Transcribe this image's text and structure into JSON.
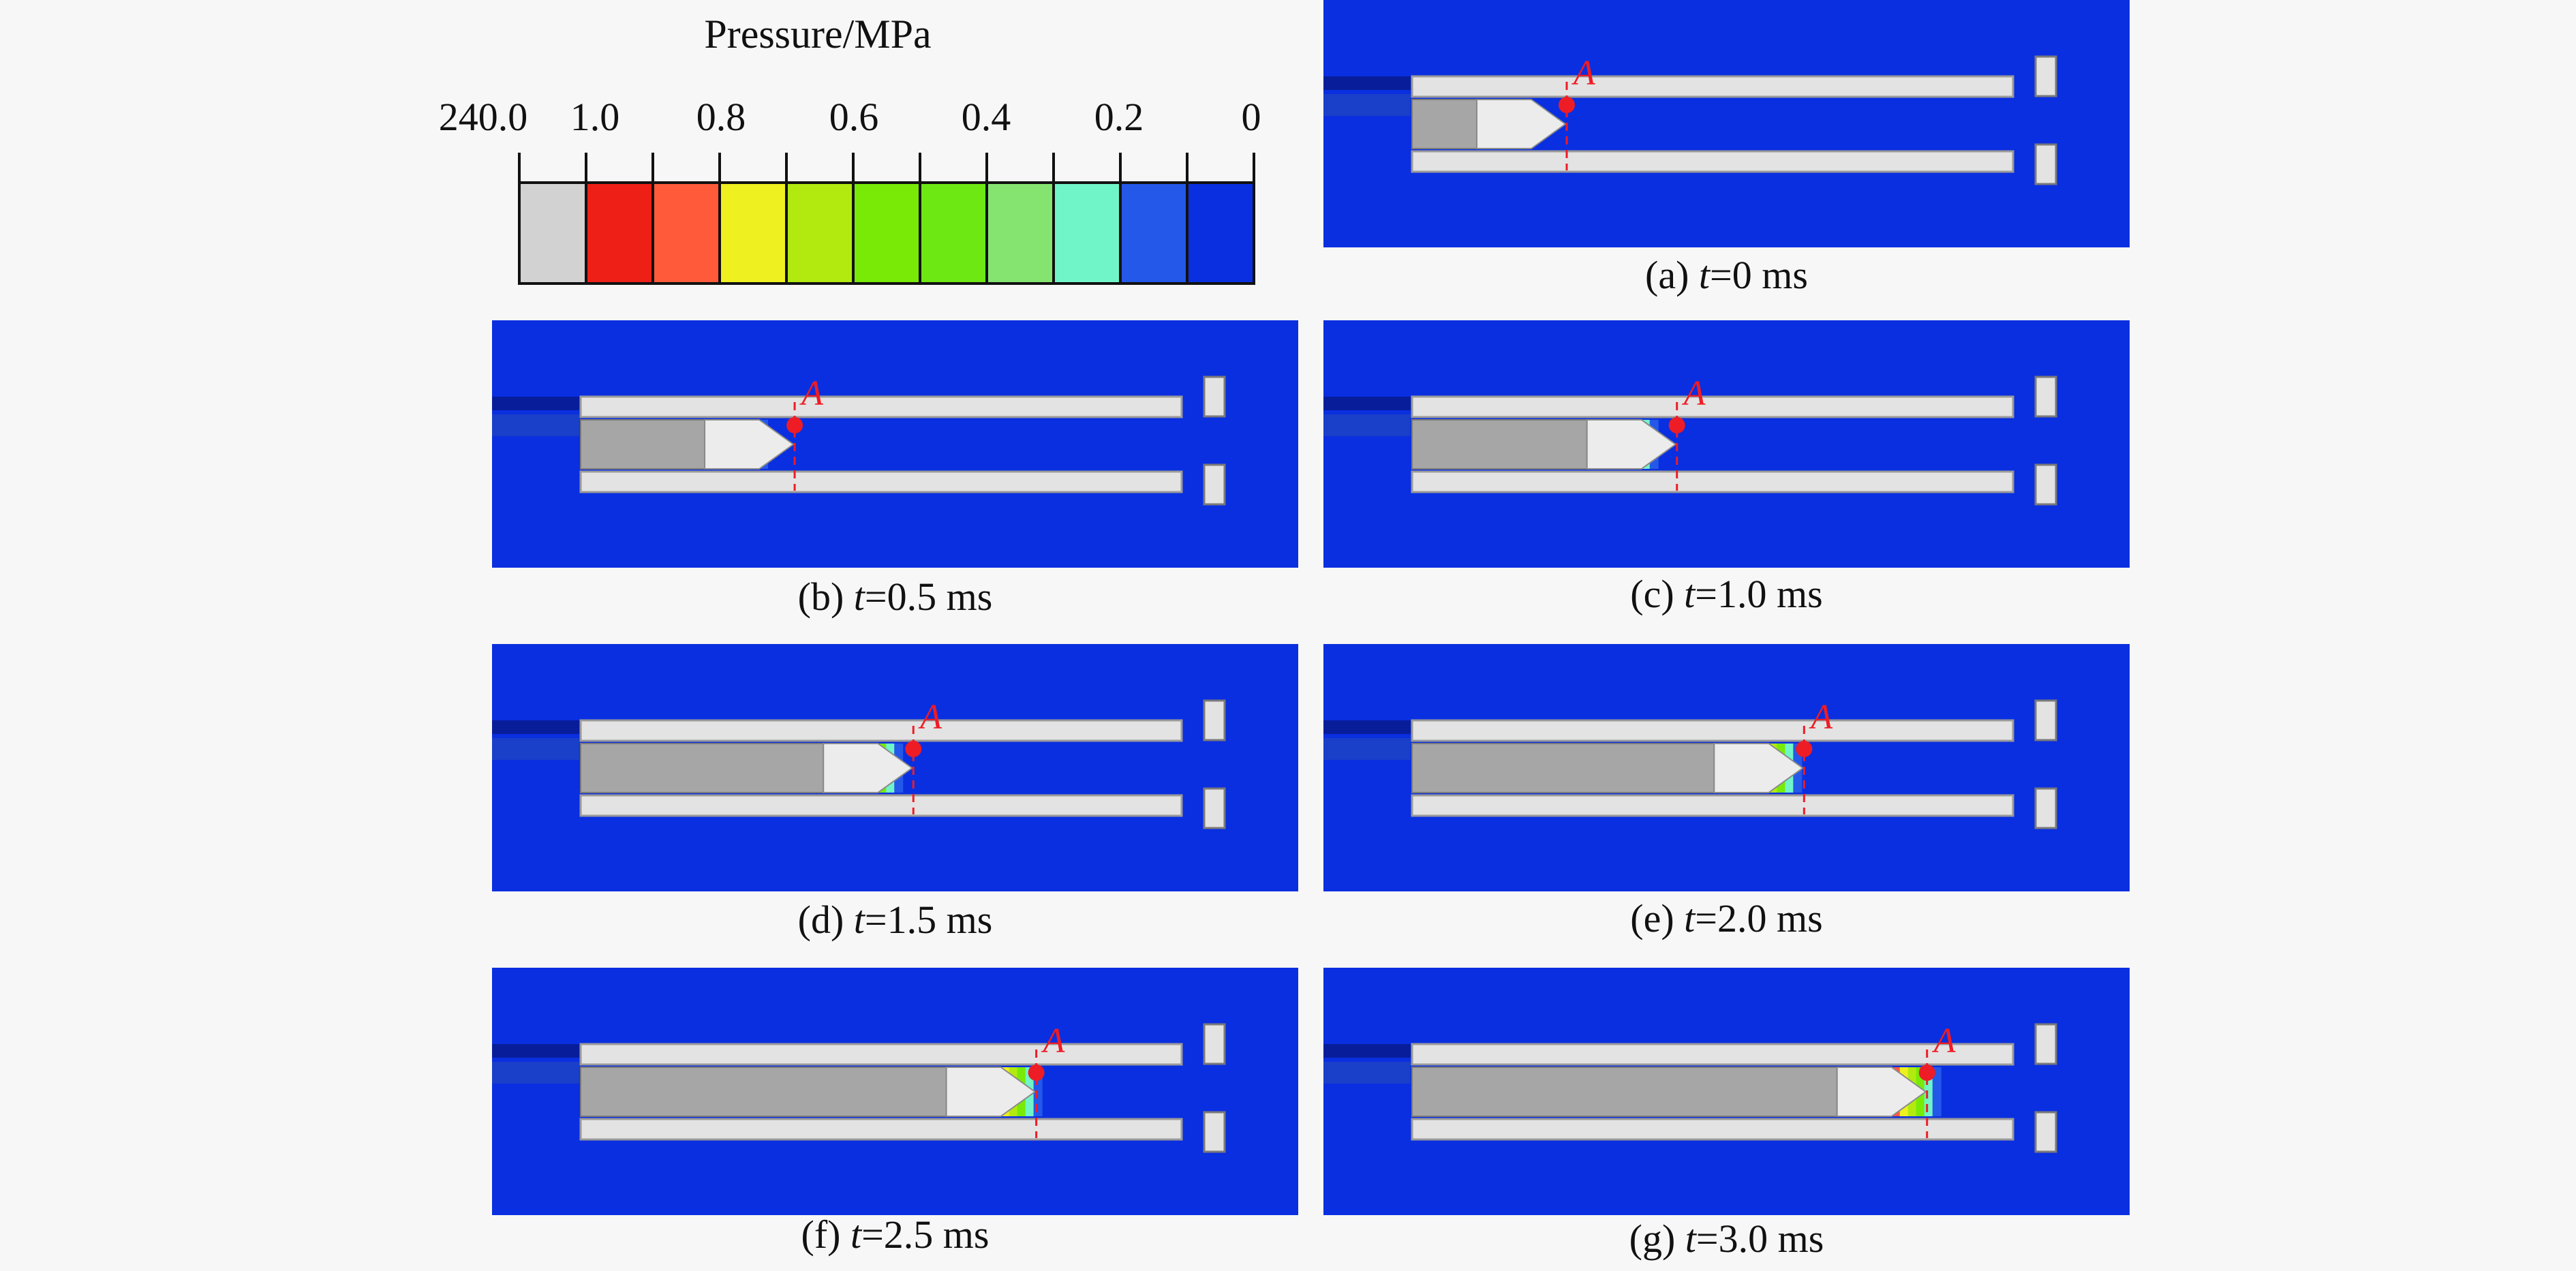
{
  "legend": {
    "title": "Pressure/MPa",
    "labels": [
      "240.0",
      "1.0",
      "0.8",
      "0.6",
      "0.4",
      "0.2",
      "0"
    ],
    "swatches": [
      "#d2d2d2",
      "#ee1f16",
      "#ff5a3a",
      "#eef020",
      "#b2ea10",
      "#78ea06",
      "#6ee812",
      "#85e470",
      "#70f5c8",
      "#2458e8",
      "#0a2fe0"
    ]
  },
  "point_label": "A",
  "colors": {
    "fluid": "#0a2fe0",
    "tube": "#e3e3e3",
    "projectile": "#a6a6a6",
    "marker": "#ee1c25"
  },
  "panels": [
    {
      "id": "a",
      "prefix": "(a) ",
      "var": "t",
      "rest": "=0 ms",
      "time_ms": 0,
      "projectile_fraction": 0.0
    },
    {
      "id": "b",
      "prefix": "(b) ",
      "var": "t",
      "rest": "=0.5 ms",
      "time_ms": 0.5,
      "projectile_fraction": 0.14
    },
    {
      "id": "c",
      "prefix": "(c) ",
      "var": "t",
      "rest": "=1.0 ms",
      "time_ms": 1.0,
      "projectile_fraction": 0.26
    },
    {
      "id": "d",
      "prefix": "(d) ",
      "var": "t",
      "rest": "=1.5 ms",
      "time_ms": 1.5,
      "projectile_fraction": 0.42
    },
    {
      "id": "e",
      "prefix": "(e) ",
      "var": "t",
      "rest": "=2.0 ms",
      "time_ms": 2.0,
      "projectile_fraction": 0.56
    },
    {
      "id": "f",
      "prefix": "(f) ",
      "var": "t",
      "rest": "=2.5 ms",
      "time_ms": 2.5,
      "projectile_fraction": 0.71
    },
    {
      "id": "g",
      "prefix": "(g) ",
      "var": "t",
      "rest": "=3.0 ms",
      "time_ms": 3.0,
      "projectile_fraction": 0.85
    }
  ]
}
